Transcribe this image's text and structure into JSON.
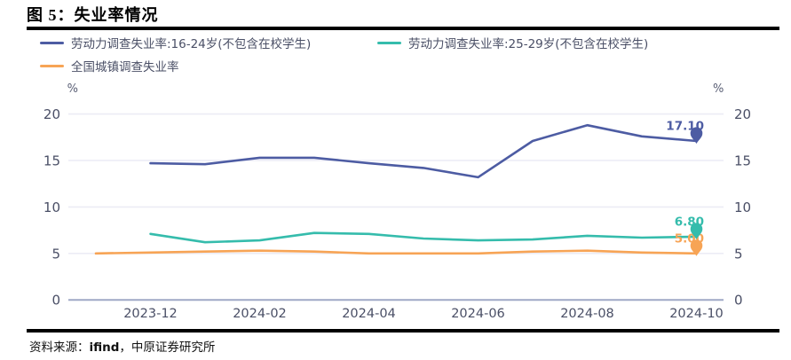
{
  "figure": {
    "title": "图 5：失业率情况",
    "source_prefix": "资料来源：",
    "source_brand": "ifind",
    "source_suffix": "，中原证券研究所"
  },
  "legend": [
    {
      "id": "youth-16-24",
      "label": "劳动力调查失业率:16-24岁(不包含在校学生)",
      "color": "#4d5ca3"
    },
    {
      "id": "youth-25-29",
      "label": "劳动力调查失业率:25-29岁(不包含在校学生)",
      "color": "#35bcac"
    },
    {
      "id": "urban-national",
      "label": "全国城镇调查失业率",
      "color": "#f7a455"
    }
  ],
  "chart_data": {
    "type": "line",
    "title": "失业率情况",
    "x": [
      "2023-11",
      "2023-12",
      "2024-01",
      "2024-02",
      "2024-03",
      "2024-04",
      "2024-05",
      "2024-06",
      "2024-07",
      "2024-08",
      "2024-09",
      "2024-10"
    ],
    "x_tick_labels": [
      "2023-12",
      "2024-02",
      "2024-04",
      "2024-06",
      "2024-08",
      "2024-10"
    ],
    "y_axis": {
      "unit": "%",
      "ticks": [
        0,
        5,
        10,
        15,
        20
      ],
      "range": [
        0,
        20
      ],
      "dual_axis": true
    },
    "grid": true,
    "legend_position": "top",
    "series": [
      {
        "id": "youth-16-24",
        "name": "劳动力调查失业率:16-24岁(不包含在校学生)",
        "color": "#4d5ca3",
        "values": [
          null,
          14.7,
          14.6,
          15.3,
          15.3,
          14.7,
          14.2,
          13.2,
          17.1,
          18.8,
          17.6,
          17.1
        ],
        "end_label": "17.10",
        "end_marker": "pin"
      },
      {
        "id": "youth-25-29",
        "name": "劳动力调查失业率:25-29岁(不包含在校学生)",
        "color": "#35bcac",
        "values": [
          null,
          7.1,
          6.2,
          6.4,
          7.2,
          7.1,
          6.6,
          6.4,
          6.5,
          6.9,
          6.7,
          6.8
        ],
        "end_label": "6.80",
        "end_marker": "pin"
      },
      {
        "id": "urban-national",
        "name": "全国城镇调查失业率",
        "color": "#f7a455",
        "values": [
          5.0,
          5.1,
          5.2,
          5.3,
          5.2,
          5.0,
          5.0,
          5.0,
          5.2,
          5.3,
          5.1,
          5.0
        ],
        "end_label": "5.00",
        "end_marker": "pin"
      }
    ],
    "style": {
      "grid_color": "#ececf5",
      "axis_color": "#9fa8c6",
      "tick_text_color": "#4a4f66",
      "unit_text_color": "#5a5f75"
    }
  }
}
